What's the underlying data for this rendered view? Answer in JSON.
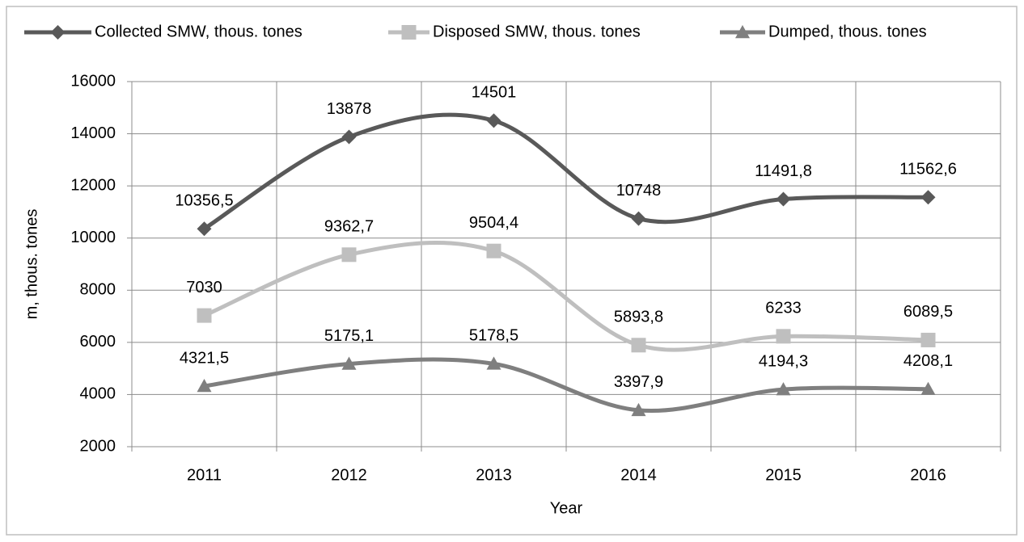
{
  "chart_data": {
    "type": "line",
    "categories": [
      "2011",
      "2012",
      "2013",
      "2014",
      "2015",
      "2016"
    ],
    "series": [
      {
        "name": "Collected SMW, thous. tones",
        "color": "#595959",
        "marker": "diamond",
        "values": [
          10356.5,
          13878,
          14501,
          10748,
          11491.8,
          11562.6
        ],
        "value_labels": [
          "10356,5",
          "13878",
          "14501",
          "10748",
          "11491,8",
          "11562,6"
        ]
      },
      {
        "name": "Disposed SMW, thous. tones",
        "color": "#bfbfbf",
        "marker": "square",
        "values": [
          7030,
          9362.7,
          9504.4,
          5893.8,
          6233,
          6089.5
        ],
        "value_labels": [
          "7030",
          "9362,7",
          "9504,4",
          "5893,8",
          "6233",
          "6089,5"
        ]
      },
      {
        "name": "Dumped, thous. tones",
        "color": "#7f7f7f",
        "marker": "triangle",
        "values": [
          4321.5,
          5175.1,
          5178.5,
          3397.9,
          4194.3,
          4208.1
        ],
        "value_labels": [
          "4321,5",
          "5175,1",
          "5178,5",
          "3397,9",
          "4194,3",
          "4208,1"
        ]
      }
    ],
    "x_label": "Year",
    "y_label": "m, thous. tones",
    "ylim": [
      2000,
      16000
    ],
    "yticks": [
      2000,
      4000,
      6000,
      8000,
      10000,
      12000,
      14000,
      16000
    ],
    "grid": true,
    "smooth": true,
    "legend": "top"
  }
}
